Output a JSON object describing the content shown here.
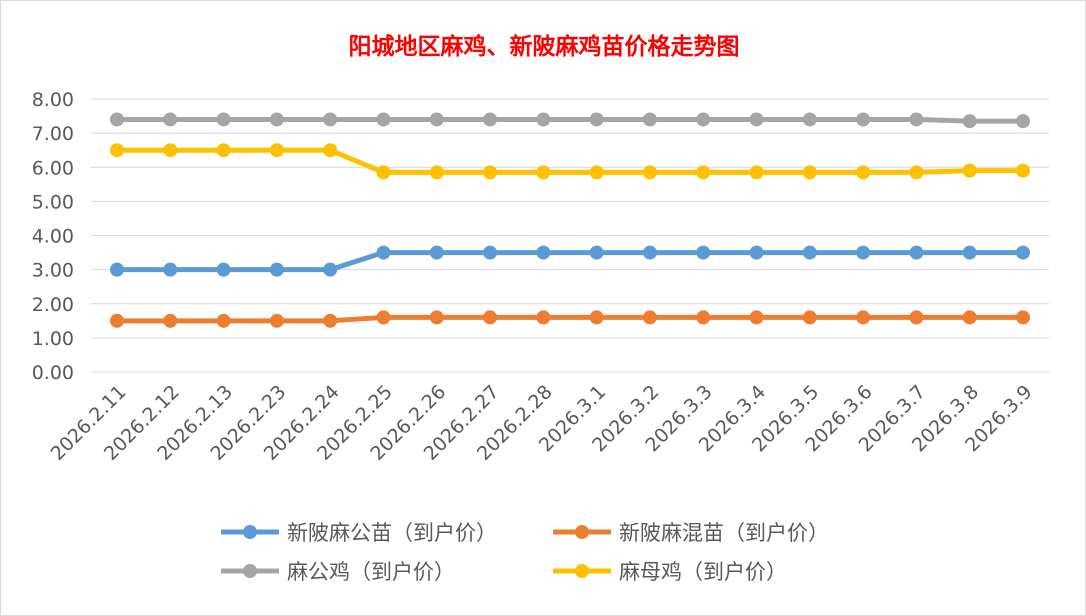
{
  "chart_data": {
    "type": "line",
    "title": "阳城地区麻鸡、新陂麻鸡苗价格走势图",
    "xlabel": "",
    "ylabel": "",
    "ylim": [
      0,
      8
    ],
    "yticks": [
      "0.00",
      "1.00",
      "2.00",
      "3.00",
      "4.00",
      "5.00",
      "6.00",
      "7.00",
      "8.00"
    ],
    "categories": [
      "2026.2.11",
      "2026.2.12",
      "2026.2.13",
      "2026.2.23",
      "2026.2.24",
      "2026.2.25",
      "2026.2.26",
      "2026.2.27",
      "2026.2.28",
      "2026.3.1",
      "2026.3.2",
      "2026.3.3",
      "2026.3.4",
      "2026.3.5",
      "2026.3.6",
      "2026.3.7",
      "2026.3.8",
      "2026.3.9"
    ],
    "grid": true,
    "legend_position": "bottom",
    "series": [
      {
        "name": "新陂麻公苗（到户价）",
        "color": "#5b9bd5",
        "values": [
          3.0,
          3.0,
          3.0,
          3.0,
          3.0,
          3.5,
          3.5,
          3.5,
          3.5,
          3.5,
          3.5,
          3.5,
          3.5,
          3.5,
          3.5,
          3.5,
          3.5,
          3.5
        ]
      },
      {
        "name": "新陂麻混苗（到户价）",
        "color": "#ed7d31",
        "values": [
          1.5,
          1.5,
          1.5,
          1.5,
          1.5,
          1.6,
          1.6,
          1.6,
          1.6,
          1.6,
          1.6,
          1.6,
          1.6,
          1.6,
          1.6,
          1.6,
          1.6,
          1.6
        ]
      },
      {
        "name": "麻公鸡（到户价）",
        "color": "#a5a5a5",
        "values": [
          7.4,
          7.4,
          7.4,
          7.4,
          7.4,
          7.4,
          7.4,
          7.4,
          7.4,
          7.4,
          7.4,
          7.4,
          7.4,
          7.4,
          7.4,
          7.4,
          7.35,
          7.35
        ]
      },
      {
        "name": "麻母鸡（到户价）",
        "color": "#ffc000",
        "values": [
          6.5,
          6.5,
          6.5,
          6.5,
          6.5,
          5.85,
          5.85,
          5.85,
          5.85,
          5.85,
          5.85,
          5.85,
          5.85,
          5.85,
          5.85,
          5.85,
          5.9,
          5.9
        ]
      }
    ]
  }
}
